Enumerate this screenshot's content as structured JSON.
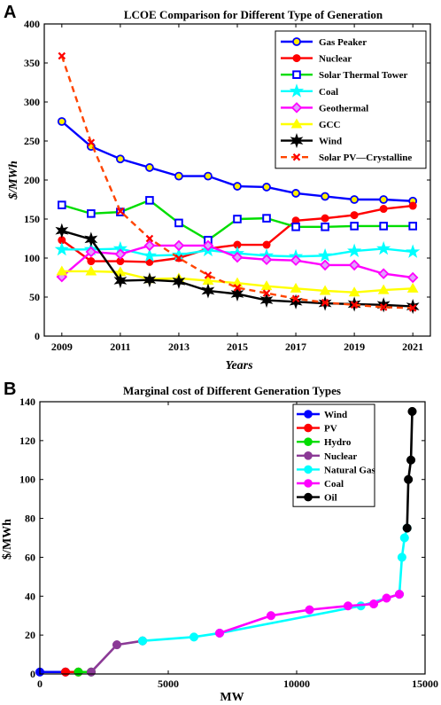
{
  "chart_data": [
    {
      "panel": "A",
      "type": "line",
      "title": "LCOE Comparison for Different Type of Generation",
      "xlabel": "Years",
      "ylabel": "$/MWh",
      "xlim": [
        2008.4,
        2021.6
      ],
      "ylim": [
        0,
        400
      ],
      "xticks": [
        2009,
        2011,
        2013,
        2015,
        2017,
        2019,
        2021
      ],
      "yticks": [
        0,
        50,
        100,
        150,
        200,
        250,
        300,
        350,
        400
      ],
      "legend_position": "top-right",
      "x": [
        2009,
        2010,
        2011,
        2012,
        2013,
        2014,
        2015,
        2016,
        2017,
        2018,
        2019,
        2020,
        2021
      ],
      "series": [
        {
          "name": "Gas Peaker",
          "color": "#0000ff",
          "marker": "circle",
          "marker_fill": "#ffee00",
          "style": "solid",
          "values": [
            275,
            243,
            227,
            216,
            205,
            205,
            192,
            191,
            183,
            179,
            175,
            175,
            173
          ]
        },
        {
          "name": "Nuclear",
          "color": "#ff0000",
          "marker": "dot",
          "marker_fill": "#ff0000",
          "style": "solid",
          "values": [
            123,
            96,
            96,
            95,
            100,
            112,
            117,
            117,
            148,
            151,
            155,
            163,
            167
          ]
        },
        {
          "name": "Solar Thermal Tower",
          "color": "#00dd00",
          "marker": "square",
          "marker_fill": "#ffffff",
          "marker_edge": "#0000ff",
          "style": "solid",
          "values": [
            168,
            157,
            159,
            174,
            145,
            123,
            150,
            151,
            140,
            140,
            141,
            141,
            141
          ]
        },
        {
          "name": "Coal",
          "color": "#00ffff",
          "marker": "star",
          "marker_fill": "#00ffff",
          "style": "solid",
          "values": [
            111,
            111,
            112,
            103,
            104,
            110,
            106,
            103,
            102,
            103,
            109,
            112,
            108
          ]
        },
        {
          "name": "Geothermal",
          "color": "#ff00ff",
          "marker": "diamond",
          "marker_fill": "#e0a0ff",
          "style": "solid",
          "values": [
            76,
            108,
            105,
            116,
            116,
            116,
            101,
            98,
            97,
            91,
            91,
            80,
            75
          ]
        },
        {
          "name": "GCC",
          "color": "#ffff00",
          "marker": "triangle",
          "marker_fill": "#ffff00",
          "style": "solid",
          "values": [
            83,
            83,
            82,
            73,
            74,
            71,
            68,
            64,
            61,
            58,
            56,
            59,
            61
          ]
        },
        {
          "name": "Wind",
          "color": "#000000",
          "marker": "hexstar",
          "marker_fill": "#000000",
          "style": "solid",
          "values": [
            135,
            124,
            71,
            72,
            70,
            58,
            54,
            46,
            44,
            42,
            41,
            40,
            38
          ]
        },
        {
          "name": "Solar PV—Crystalline",
          "color": "#ff4400",
          "marker": "x",
          "marker_fill": "#ff0000",
          "style": "dashed",
          "values": [
            359,
            248,
            160,
            125,
            100,
            78,
            62,
            55,
            48,
            43,
            40,
            37,
            36
          ]
        }
      ]
    },
    {
      "panel": "B",
      "type": "line",
      "title": "Marginal cost of Different Generation Types",
      "xlabel": "MW",
      "ylabel": "$/MWh",
      "xlim": [
        0,
        15000
      ],
      "ylim": [
        0,
        140
      ],
      "xticks": [
        0,
        5000,
        10000,
        15000
      ],
      "yticks": [
        0,
        20,
        40,
        60,
        80,
        100,
        120,
        140
      ],
      "legend_position": "top-right",
      "series": [
        {
          "name": "Wind",
          "color": "#0000ff",
          "points": [
            [
              0,
              1
            ],
            [
              1000,
              1
            ]
          ]
        },
        {
          "name": "PV",
          "color": "#ff0000",
          "points": [
            [
              1000,
              1
            ],
            [
              1500,
              1
            ]
          ]
        },
        {
          "name": "Hydro",
          "color": "#00dd00",
          "points": [
            [
              1500,
              1
            ],
            [
              2000,
              1
            ]
          ]
        },
        {
          "name": "Nuclear",
          "color": "#8b3a96",
          "points": [
            [
              2000,
              1
            ],
            [
              3000,
              15
            ],
            [
              4000,
              17
            ]
          ]
        },
        {
          "name": "Natural Gas",
          "color": "#00ffff",
          "points": [
            [
              4000,
              17
            ],
            [
              6000,
              19
            ],
            [
              7000,
              21
            ],
            [
              12500,
              35
            ],
            [
              14000,
              41
            ],
            [
              14100,
              60
            ],
            [
              14200,
              70
            ],
            [
              14300,
              75
            ]
          ]
        },
        {
          "name": "Coal",
          "color": "#ff00ff",
          "points": [
            [
              7000,
              21
            ],
            [
              9000,
              30
            ],
            [
              10500,
              33
            ],
            [
              12000,
              35
            ],
            [
              13000,
              36
            ],
            [
              13500,
              39
            ],
            [
              14000,
              41
            ]
          ]
        },
        {
          "name": "Oil",
          "color": "#000000",
          "points": [
            [
              14300,
              75
            ],
            [
              14350,
              100
            ],
            [
              14450,
              110
            ],
            [
              14500,
              135
            ]
          ]
        }
      ]
    }
  ]
}
